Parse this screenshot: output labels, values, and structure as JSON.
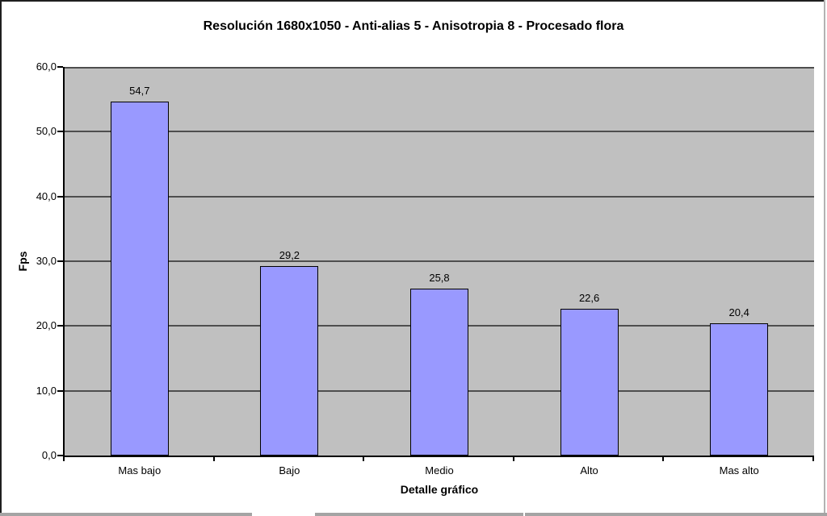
{
  "chart_data": {
    "type": "bar",
    "title": "Resolución 1680x1050 - Anti-alias 5 - Anisotropia 8 - Procesado flora",
    "xlabel": "Detalle gráfico",
    "ylabel": "Fps",
    "categories": [
      "Mas bajo",
      "Bajo",
      "Medio",
      "Alto",
      "Mas alto"
    ],
    "values": [
      54.7,
      29.2,
      25.8,
      22.6,
      20.4
    ],
    "value_labels": [
      "54,7",
      "29,2",
      "25,8",
      "22,6",
      "20,4"
    ],
    "ylim": [
      0,
      60
    ],
    "ytick_interval": 10,
    "ytick_labels": [
      "0,0",
      "10,0",
      "20,0",
      "30,0",
      "40,0",
      "50,0",
      "60,0"
    ],
    "grid": true,
    "legend_position": "none",
    "colors": {
      "bar_fill": "#9999ff",
      "bar_border": "#000000",
      "plot_bg": "#c0c0c0",
      "gridline": "#4e4e4e",
      "axis": "#000000",
      "chart_bg": "#ffffff"
    }
  }
}
